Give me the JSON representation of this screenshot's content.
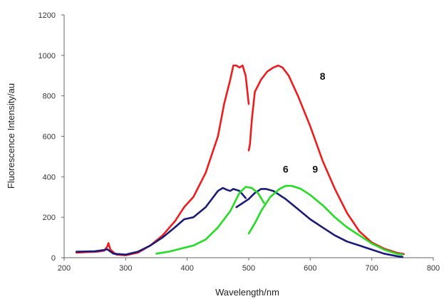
{
  "chart_data": {
    "type": "line",
    "title": "",
    "xlabel": "Wavelength/nm",
    "ylabel": "Fluorescence Intensity/au",
    "xlim": [
      200,
      800
    ],
    "ylim": [
      0,
      1200
    ],
    "x_ticks": [
      200,
      300,
      400,
      500,
      600,
      700,
      800
    ],
    "y_ticks": [
      0,
      200,
      400,
      600,
      800,
      1000,
      1200
    ],
    "x_tick_labels": [
      "200",
      "300",
      "400",
      "500",
      "600",
      "700",
      "800"
    ],
    "y_tick_labels": [
      "0",
      "200",
      "400",
      "600",
      "800",
      "1000",
      "1200"
    ],
    "grid": false,
    "legend": "none",
    "series": [
      {
        "name": "8",
        "color": "#ee1c1c",
        "segments": [
          [
            [
              220,
              25
            ],
            [
              240,
              28
            ],
            [
              255,
              30
            ],
            [
              265,
              35
            ],
            [
              270,
              55
            ],
            [
              272,
              72
            ],
            [
              275,
              40
            ],
            [
              285,
              15
            ],
            [
              300,
              12
            ],
            [
              320,
              25
            ],
            [
              340,
              60
            ],
            [
              360,
              110
            ],
            [
              380,
              180
            ],
            [
              395,
              250
            ],
            [
              410,
              300
            ],
            [
              430,
              420
            ],
            [
              450,
              600
            ],
            [
              460,
              760
            ],
            [
              470,
              880
            ],
            [
              475,
              950
            ],
            [
              480,
              950
            ],
            [
              485,
              940
            ],
            [
              490,
              950
            ],
            [
              495,
              900
            ],
            [
              500,
              760
            ]
          ],
          [
            [
              500,
              530
            ],
            [
              502,
              560
            ],
            [
              505,
              680
            ],
            [
              510,
              820
            ],
            [
              520,
              880
            ],
            [
              530,
              920
            ],
            [
              540,
              940
            ],
            [
              548,
              950
            ],
            [
              555,
              940
            ],
            [
              565,
              900
            ],
            [
              580,
              800
            ],
            [
              600,
              650
            ],
            [
              620,
              480
            ],
            [
              640,
              340
            ],
            [
              660,
              220
            ],
            [
              680,
              130
            ],
            [
              700,
              75
            ],
            [
              720,
              45
            ],
            [
              740,
              25
            ],
            [
              752,
              18
            ]
          ]
        ]
      },
      {
        "name": "6",
        "color": "#1a1a7a",
        "segments": [
          [
            [
              220,
              30
            ],
            [
              250,
              32
            ],
            [
              265,
              38
            ],
            [
              270,
              42
            ],
            [
              280,
              20
            ],
            [
              300,
              15
            ],
            [
              320,
              30
            ],
            [
              340,
              60
            ],
            [
              360,
              100
            ],
            [
              380,
              150
            ],
            [
              395,
              190
            ],
            [
              410,
              200
            ],
            [
              430,
              250
            ],
            [
              440,
              290
            ],
            [
              450,
              330
            ],
            [
              458,
              345
            ],
            [
              465,
              335
            ],
            [
              470,
              330
            ],
            [
              475,
              340
            ],
            [
              485,
              330
            ],
            [
              495,
              295
            ]
          ],
          [
            [
              480,
              250
            ],
            [
              490,
              270
            ],
            [
              500,
              290
            ],
            [
              510,
              320
            ],
            [
              520,
              340
            ],
            [
              528,
              340
            ],
            [
              540,
              330
            ],
            [
              560,
              290
            ],
            [
              580,
              240
            ],
            [
              600,
              190
            ],
            [
              620,
              150
            ],
            [
              640,
              110
            ],
            [
              660,
              80
            ],
            [
              680,
              60
            ],
            [
              700,
              40
            ],
            [
              720,
              20
            ],
            [
              740,
              8
            ],
            [
              750,
              4
            ]
          ]
        ]
      },
      {
        "name": "9",
        "color": "#22dd22",
        "segments": [
          [
            [
              350,
              20
            ],
            [
              370,
              30
            ],
            [
              390,
              45
            ],
            [
              410,
              60
            ],
            [
              430,
              90
            ],
            [
              450,
              150
            ],
            [
              470,
              230
            ],
            [
              485,
              320
            ],
            [
              495,
              350
            ],
            [
              505,
              345
            ],
            [
              515,
              320
            ],
            [
              525,
              270
            ]
          ],
          [
            [
              500,
              120
            ],
            [
              510,
              170
            ],
            [
              520,
              230
            ],
            [
              535,
              300
            ],
            [
              550,
              340
            ],
            [
              560,
              355
            ],
            [
              570,
              355
            ],
            [
              585,
              340
            ],
            [
              600,
              310
            ],
            [
              620,
              260
            ],
            [
              640,
              200
            ],
            [
              660,
              150
            ],
            [
              680,
              110
            ],
            [
              700,
              70
            ],
            [
              720,
              40
            ],
            [
              740,
              20
            ],
            [
              750,
              15
            ]
          ]
        ]
      }
    ],
    "annotations": [
      {
        "text": "8",
        "x": 620,
        "y": 880
      },
      {
        "text": "6",
        "x": 560,
        "y": 420
      },
      {
        "text": "9",
        "x": 608,
        "y": 420
      }
    ]
  }
}
